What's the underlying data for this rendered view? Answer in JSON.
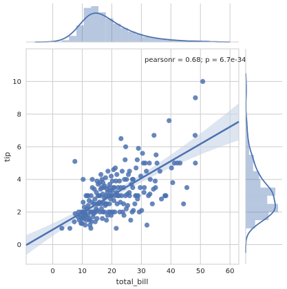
{
  "chart_data": {
    "type": "scatter",
    "subtype": "jointplot",
    "xlabel": "total_bill",
    "ylabel": "tip",
    "xlim": [
      -9,
      63
    ],
    "ylim": [
      -1.2,
      12
    ],
    "xticks": [
      0,
      10,
      20,
      30,
      40,
      50,
      60
    ],
    "yticks": [
      0,
      2,
      4,
      6,
      8,
      10
    ],
    "grid": true,
    "annotation": "pearsonr = 0.68; p = 6.7e-34",
    "colors": {
      "marker": "#4c72b0",
      "band": "#c7d3e8",
      "hist": "#4c72b0",
      "grid": "#cccccc"
    },
    "regression": {
      "intercept": 0.92,
      "slope": 0.105,
      "x_range": [
        -9,
        63
      ]
    },
    "points": [
      [
        3.1,
        1.0
      ],
      [
        5.8,
        1.0
      ],
      [
        7.3,
        1.4
      ],
      [
        7.6,
        1.9
      ],
      [
        7.5,
        5.1
      ],
      [
        8.6,
        1.7
      ],
      [
        9.0,
        1.5
      ],
      [
        9.5,
        1.8
      ],
      [
        9.6,
        1.3
      ],
      [
        9.8,
        1.6
      ],
      [
        10.0,
        1.3
      ],
      [
        10.1,
        2.0
      ],
      [
        10.3,
        1.7
      ],
      [
        10.3,
        2.6
      ],
      [
        10.3,
        4.0
      ],
      [
        10.6,
        1.6
      ],
      [
        10.8,
        1.9
      ],
      [
        11.0,
        1.2
      ],
      [
        11.2,
        1.8
      ],
      [
        11.4,
        1.5
      ],
      [
        11.6,
        2.2
      ],
      [
        11.7,
        3.0
      ],
      [
        11.9,
        1.8
      ],
      [
        12.0,
        2.4
      ],
      [
        12.3,
        2.7
      ],
      [
        12.5,
        1.5
      ],
      [
        12.7,
        2.0
      ],
      [
        12.9,
        1.0
      ],
      [
        13.0,
        2.0
      ],
      [
        13.1,
        1.4
      ],
      [
        13.3,
        2.6
      ],
      [
        13.4,
        3.5
      ],
      [
        13.4,
        4.0
      ],
      [
        13.8,
        2.0
      ],
      [
        14.0,
        2.5
      ],
      [
        14.1,
        3.4
      ],
      [
        14.3,
        2.8
      ],
      [
        14.5,
        2.0
      ],
      [
        14.7,
        2.2
      ],
      [
        14.8,
        3.2
      ],
      [
        15.0,
        1.6
      ],
      [
        15.0,
        3.9
      ],
      [
        15.1,
        2.1
      ],
      [
        15.3,
        3.0
      ],
      [
        15.5,
        2.5
      ],
      [
        15.7,
        3.0
      ],
      [
        15.9,
        3.8
      ],
      [
        16.0,
        2.0
      ],
      [
        16.2,
        3.4
      ],
      [
        16.3,
        4.3
      ],
      [
        16.4,
        2.5
      ],
      [
        16.6,
        3.5
      ],
      [
        16.8,
        1.6
      ],
      [
        16.9,
        3.1
      ],
      [
        17.1,
        2.6
      ],
      [
        17.3,
        3.5
      ],
      [
        17.5,
        2.0
      ],
      [
        17.6,
        3.6
      ],
      [
        17.8,
        2.4
      ],
      [
        17.9,
        4.1
      ],
      [
        18.0,
        3.0
      ],
      [
        18.2,
        1.5
      ],
      [
        18.3,
        2.5
      ],
      [
        18.4,
        3.4
      ],
      [
        18.7,
        4.5
      ],
      [
        18.9,
        2.0
      ],
      [
        19.1,
        3.5
      ],
      [
        19.2,
        2.5
      ],
      [
        19.4,
        3.3
      ],
      [
        19.5,
        2.0
      ],
      [
        19.7,
        3.0
      ],
      [
        19.8,
        4.2
      ],
      [
        20.1,
        3.3
      ],
      [
        20.3,
        2.0
      ],
      [
        20.5,
        3.5
      ],
      [
        20.6,
        4.6
      ],
      [
        20.9,
        3.5
      ],
      [
        21.0,
        3.0
      ],
      [
        21.2,
        4.7
      ],
      [
        21.5,
        1.0
      ],
      [
        21.7,
        4.3
      ],
      [
        21.8,
        2.5
      ],
      [
        22.1,
        3.5
      ],
      [
        22.4,
        3.0
      ],
      [
        22.7,
        2.0
      ],
      [
        23.0,
        3.5
      ],
      [
        23.1,
        6.5
      ],
      [
        23.3,
        3.0
      ],
      [
        23.7,
        2.0
      ],
      [
        24.0,
        3.5
      ],
      [
        24.1,
        1.8
      ],
      [
        24.3,
        4.0
      ],
      [
        24.5,
        5.2
      ],
      [
        24.6,
        3.0
      ],
      [
        24.7,
        6.0
      ],
      [
        25.0,
        4.0
      ],
      [
        25.3,
        3.1
      ],
      [
        25.6,
        4.3
      ],
      [
        25.9,
        3.2
      ],
      [
        26.0,
        4.5
      ],
      [
        26.4,
        1.5
      ],
      [
        26.9,
        2.0
      ],
      [
        27.1,
        3.5
      ],
      [
        27.2,
        4.0
      ],
      [
        27.3,
        2.1
      ],
      [
        28.0,
        3.0
      ],
      [
        28.2,
        4.7
      ],
      [
        28.4,
        3.0
      ],
      [
        28.6,
        5.2
      ],
      [
        28.9,
        3.0
      ],
      [
        29.0,
        5.9
      ],
      [
        29.3,
        2.0
      ],
      [
        29.8,
        4.2
      ],
      [
        30.1,
        2.1
      ],
      [
        30.4,
        5.6
      ],
      [
        30.7,
        5.0
      ],
      [
        31.3,
        5.0
      ],
      [
        31.7,
        4.5
      ],
      [
        31.9,
        1.2
      ],
      [
        32.4,
        3.0
      ],
      [
        32.7,
        5.0
      ],
      [
        32.9,
        3.1
      ],
      [
        33.7,
        2.5
      ],
      [
        34.3,
        6.7
      ],
      [
        34.7,
        3.9
      ],
      [
        34.8,
        3.5
      ],
      [
        35.0,
        5.5
      ],
      [
        35.3,
        5.0
      ],
      [
        36.3,
        4.5
      ],
      [
        38.0,
        3.0
      ],
      [
        38.1,
        3.0
      ],
      [
        38.3,
        3.0
      ],
      [
        39.4,
        7.6
      ],
      [
        40.2,
        4.7
      ],
      [
        40.6,
        3.8
      ],
      [
        41.2,
        5.0
      ],
      [
        42.2,
        5.0
      ],
      [
        43.1,
        5.0
      ],
      [
        44.3,
        2.5
      ],
      [
        48.2,
        6.7
      ],
      [
        48.3,
        9.0
      ],
      [
        48.3,
        5.0
      ],
      [
        50.8,
        10.0
      ],
      [
        45.4,
        3.5
      ],
      [
        27.0,
        4.0
      ],
      [
        22.0,
        3.0
      ],
      [
        13.0,
        3.0
      ],
      [
        12.0,
        3.0
      ],
      [
        16.0,
        3.0
      ],
      [
        19.0,
        3.0
      ],
      [
        20.0,
        3.0
      ],
      [
        17.0,
        2.0
      ],
      [
        14.0,
        2.0
      ],
      [
        15.0,
        2.5
      ],
      [
        18.0,
        2.5
      ],
      [
        21.0,
        2.0
      ],
      [
        24.0,
        2.5
      ],
      [
        26.0,
        3.0
      ],
      [
        11.0,
        2.0
      ],
      [
        10.7,
        2.3
      ],
      [
        12.2,
        1.6
      ],
      [
        13.6,
        1.7
      ],
      [
        14.4,
        1.4
      ],
      [
        16.5,
        2.2
      ],
      [
        18.5,
        3.2
      ],
      [
        19.6,
        2.8
      ],
      [
        20.7,
        2.7
      ],
      [
        22.6,
        3.9
      ],
      [
        25.4,
        2.4
      ],
      [
        27.8,
        2.5
      ],
      [
        29.6,
        3.5
      ],
      [
        31.0,
        3.5
      ],
      [
        33.0,
        4.0
      ],
      [
        15.4,
        3.7
      ],
      [
        16.7,
        4.0
      ],
      [
        20.2,
        3.9
      ],
      [
        21.4,
        3.9
      ],
      [
        23.5,
        4.5
      ],
      [
        11.3,
        3.0
      ],
      [
        9.9,
        2.0
      ],
      [
        8.8,
        2.0
      ],
      [
        12.6,
        1.2
      ],
      [
        13.9,
        1.9
      ],
      [
        17.4,
        2.9
      ],
      [
        18.6,
        1.8
      ],
      [
        19.8,
        1.8
      ],
      [
        22.9,
        2.6
      ],
      [
        24.9,
        2.2
      ],
      [
        26.6,
        3.7
      ],
      [
        28.7,
        2.8
      ],
      [
        30.9,
        3.2
      ],
      [
        34.1,
        3.4
      ],
      [
        36.8,
        2.8
      ],
      [
        15.8,
        2.6
      ],
      [
        17.0,
        3.8
      ],
      [
        19.3,
        3.7
      ],
      [
        21.6,
        3.2
      ]
    ],
    "x_hist": {
      "bin_edges": [
        3,
        5.5,
        8,
        10.5,
        13,
        15.5,
        18,
        20.5,
        23,
        25.5,
        28,
        30.5,
        33,
        35.5,
        38,
        40.5,
        43,
        45.5,
        48,
        50.5,
        53
      ],
      "counts": [
        2,
        7,
        19,
        39,
        41,
        34,
        27,
        21,
        16,
        12,
        9,
        6,
        5,
        3,
        3,
        2,
        1,
        1,
        1,
        1
      ]
    },
    "y_hist": {
      "bin_edges": [
        1,
        1.5,
        2,
        2.5,
        3,
        3.5,
        4,
        4.5,
        5,
        5.5,
        6,
        6.5,
        7,
        7.5,
        8,
        8.5,
        9,
        9.5,
        10
      ],
      "counts": [
        14,
        34,
        48,
        32,
        44,
        22,
        20,
        11,
        12,
        5,
        4,
        2,
        2,
        1,
        0,
        0,
        1,
        1
      ]
    }
  }
}
